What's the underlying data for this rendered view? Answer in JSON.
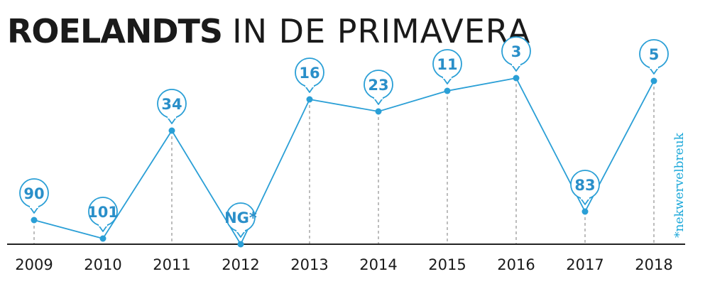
{
  "chart_data": {
    "type": "line",
    "title_bold": "ROELANDTS",
    "title_rest": "IN DE PRIMAVERA",
    "footnote": "*nekwervelbreuk",
    "x": [
      "2009",
      "2010",
      "2011",
      "2012",
      "2013",
      "2014",
      "2015",
      "2016",
      "2017",
      "2018"
    ],
    "labels": [
      "90",
      "101",
      "34",
      "NG*",
      "16",
      "23",
      "11",
      "3",
      "83",
      "5"
    ],
    "values": [
      90,
      101,
      34,
      null,
      16,
      23,
      11,
      3,
      83,
      5
    ],
    "line_color": "#2a9fd6",
    "axis_color": "#222222",
    "grid": "vertical dashed drop lines",
    "legend": "none"
  }
}
